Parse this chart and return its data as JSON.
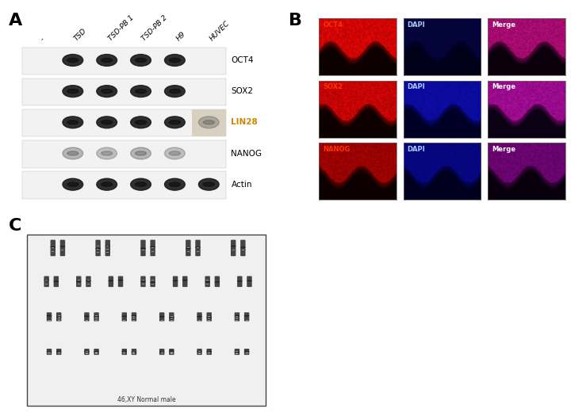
{
  "panel_A_label": "A",
  "panel_B_label": "B",
  "panel_C_label": "C",
  "lane_labels": [
    "-",
    "TSD",
    "TSD-PB 1",
    "TSD-PB 2",
    "H9",
    "HUVEC"
  ],
  "gene_labels": [
    "OCT4",
    "SOX2",
    "LIN28",
    "NANOG",
    "Actin"
  ],
  "gene_label_colors": [
    "#000000",
    "#000000",
    "#cc8800",
    "#000000",
    "#000000"
  ],
  "IF_row_labels": [
    "OCT4",
    "SOX2",
    "NANOG"
  ],
  "IF_label_colors": [
    "#ff3300",
    "#ff3300",
    "#ff3300"
  ],
  "karyotype_caption": "46,XY Normal male",
  "bg_color": "#ffffff",
  "OCT4_bands": [
    0,
    1,
    1,
    1,
    1,
    0
  ],
  "SOX2_bands": [
    0,
    1,
    1,
    1,
    1,
    0
  ],
  "LIN28_bands": [
    0,
    1,
    1,
    1,
    1,
    0.3
  ],
  "NANOG_bands": [
    0,
    0.35,
    0.3,
    0.35,
    0.3,
    0
  ],
  "Actin_bands": [
    0,
    1,
    1,
    1,
    1,
    1
  ]
}
